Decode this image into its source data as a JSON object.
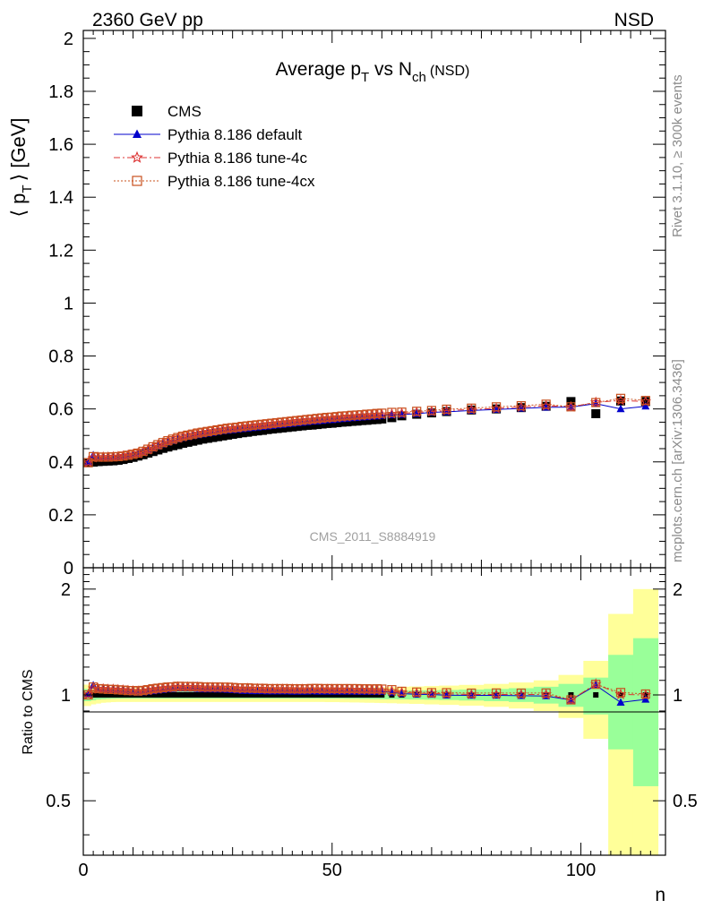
{
  "header": {
    "left": "2360 GeV pp",
    "right": "NSD"
  },
  "side": {
    "rivet": "Rivet 3.1.10, ≥ 300k events",
    "mcplots": "mcplots.cern.ch [arXiv:1306.3436]"
  },
  "chart_data": [
    {
      "panel": "main",
      "type": "scatter",
      "title": "Average p_T vs N_ch (NSD)",
      "title_parts": {
        "a": "Average p",
        "a_sub": "T",
        "b": " vs N",
        "b_sub": "ch",
        "c": "(NSD)"
      },
      "ylabel": "⟨ p_T ⟩ [GeV]",
      "ylabel_parts": {
        "lang": "⟨ p",
        "sub": "T",
        "rang": "⟩ [GeV]"
      },
      "xlim": [
        0,
        117
      ],
      "ylim": [
        0,
        2.03
      ],
      "ytick_labels": [
        "0",
        "0.2",
        "0.4",
        "0.6",
        "0.8",
        "1",
        "1.2",
        "1.4",
        "1.6",
        "1.8",
        "2"
      ],
      "ytick_values": [
        0,
        0.2,
        0.4,
        0.6,
        0.8,
        1,
        1.2,
        1.4,
        1.6,
        1.8,
        2
      ],
      "watermark": "CMS_2011_S8884919",
      "legend_position": "top-left",
      "legend": [
        {
          "name": "CMS",
          "marker": "square",
          "color": "#000000"
        },
        {
          "name": "Pythia 8.186 default",
          "marker": "triangle",
          "color": "#0000cc"
        },
        {
          "name": "Pythia 8.186 tune-4c",
          "marker": "star",
          "color": "#dd3333"
        },
        {
          "name": "Pythia 8.186 tune-4cx",
          "marker": "open-square",
          "color": "#c8501e"
        }
      ],
      "x": [
        1,
        2,
        3,
        4,
        5,
        6,
        7,
        8,
        9,
        10,
        11,
        12,
        13,
        14,
        15,
        16,
        17,
        18,
        19,
        20,
        21,
        22,
        23,
        24,
        25,
        26,
        27,
        28,
        29,
        30,
        31,
        32,
        33,
        34,
        35,
        36,
        37,
        38,
        39,
        40,
        41,
        42,
        43,
        44,
        45,
        46,
        47,
        48,
        49,
        50,
        51,
        52,
        53,
        54,
        55,
        56,
        57,
        58,
        59,
        60,
        62,
        64,
        67,
        70,
        73,
        78,
        83,
        88,
        93,
        98,
        103,
        108,
        113
      ],
      "series": [
        {
          "name": "CMS",
          "values": [
            0.397,
            0.399,
            0.401,
            0.402,
            0.403,
            0.404,
            0.406,
            0.409,
            0.413,
            0.417,
            0.422,
            0.427,
            0.433,
            0.439,
            0.445,
            0.451,
            0.456,
            0.461,
            0.465,
            0.47,
            0.474,
            0.478,
            0.482,
            0.486,
            0.489,
            0.492,
            0.495,
            0.498,
            0.501,
            0.504,
            0.507,
            0.51,
            0.512,
            0.515,
            0.517,
            0.519,
            0.522,
            0.524,
            0.526,
            0.528,
            0.53,
            0.532,
            0.534,
            0.536,
            0.538,
            0.539,
            0.541,
            0.543,
            0.545,
            0.546,
            0.548,
            0.55,
            0.551,
            0.553,
            0.554,
            0.556,
            0.557,
            0.559,
            0.56,
            0.562,
            0.567,
            0.574,
            0.58,
            0.585,
            0.59,
            0.596,
            0.6,
            0.605,
            0.61,
            0.628,
            0.582,
            0.63,
            0.628
          ]
        },
        {
          "name": "Pythia 8.186 default",
          "values": [
            0.4,
            0.425,
            0.418,
            0.418,
            0.417,
            0.418,
            0.419,
            0.42,
            0.422,
            0.425,
            0.429,
            0.435,
            0.443,
            0.451,
            0.459,
            0.467,
            0.474,
            0.48,
            0.486,
            0.491,
            0.495,
            0.499,
            0.502,
            0.505,
            0.508,
            0.511,
            0.514,
            0.517,
            0.519,
            0.521,
            0.523,
            0.525,
            0.527,
            0.529,
            0.531,
            0.533,
            0.535,
            0.537,
            0.539,
            0.541,
            0.543,
            0.545,
            0.547,
            0.549,
            0.551,
            0.553,
            0.554,
            0.556,
            0.558,
            0.559,
            0.561,
            0.563,
            0.564,
            0.566,
            0.567,
            0.569,
            0.57,
            0.572,
            0.573,
            0.575,
            0.577,
            0.579,
            0.582,
            0.587,
            0.589,
            0.594,
            0.598,
            0.602,
            0.606,
            0.607,
            0.62,
            0.6,
            0.61
          ]
        },
        {
          "name": "Pythia 8.186 tune-4c",
          "values": [
            0.398,
            0.416,
            0.417,
            0.418,
            0.418,
            0.419,
            0.42,
            0.422,
            0.425,
            0.428,
            0.432,
            0.438,
            0.446,
            0.455,
            0.463,
            0.471,
            0.478,
            0.484,
            0.49,
            0.495,
            0.499,
            0.503,
            0.507,
            0.51,
            0.513,
            0.516,
            0.519,
            0.522,
            0.525,
            0.527,
            0.529,
            0.531,
            0.534,
            0.536,
            0.538,
            0.54,
            0.542,
            0.544,
            0.546,
            0.548,
            0.55,
            0.552,
            0.554,
            0.556,
            0.558,
            0.559,
            0.561,
            0.563,
            0.565,
            0.566,
            0.568,
            0.569,
            0.571,
            0.572,
            0.573,
            0.575,
            0.576,
            0.577,
            0.578,
            0.579,
            0.581,
            0.583,
            0.587,
            0.59,
            0.594,
            0.598,
            0.602,
            0.607,
            0.612,
            0.608,
            0.625,
            0.632,
            0.628
          ]
        },
        {
          "name": "Pythia 8.186 tune-4cx",
          "values": [
            0.397,
            0.42,
            0.418,
            0.418,
            0.418,
            0.419,
            0.42,
            0.422,
            0.425,
            0.429,
            0.433,
            0.44,
            0.448,
            0.457,
            0.465,
            0.473,
            0.48,
            0.486,
            0.492,
            0.497,
            0.501,
            0.505,
            0.509,
            0.512,
            0.515,
            0.518,
            0.521,
            0.524,
            0.527,
            0.529,
            0.531,
            0.534,
            0.536,
            0.538,
            0.54,
            0.542,
            0.544,
            0.546,
            0.548,
            0.55,
            0.552,
            0.554,
            0.556,
            0.558,
            0.56,
            0.562,
            0.564,
            0.566,
            0.568,
            0.569,
            0.571,
            0.573,
            0.574,
            0.576,
            0.577,
            0.578,
            0.58,
            0.581,
            0.583,
            0.584,
            0.587,
            0.588,
            0.591,
            0.594,
            0.599,
            0.603,
            0.608,
            0.612,
            0.618,
            0.608,
            0.624,
            0.64,
            0.632
          ]
        }
      ]
    },
    {
      "panel": "ratio",
      "type": "line",
      "ylabel": "Ratio to CMS",
      "xlabel": "n",
      "xlim": [
        0,
        117
      ],
      "ylim": [
        0.35,
        2.3
      ],
      "yscale": "log",
      "ytick_labels": [
        "0.5",
        "1",
        "2"
      ],
      "ytick_values": [
        0.5,
        1,
        2
      ],
      "xtick_labels": [
        "0",
        "50",
        "100"
      ],
      "xtick_values": [
        0,
        50,
        100
      ],
      "band_colors": {
        "inner": "#99ff99",
        "outer": "#ffff99"
      },
      "bands": {
        "x": [
          1,
          2,
          3,
          4,
          5,
          6,
          7,
          8,
          9,
          10,
          11,
          12,
          13,
          14,
          15,
          16,
          17,
          18,
          19,
          20,
          21,
          22,
          23,
          24,
          25,
          26,
          27,
          28,
          29,
          30,
          31,
          32,
          33,
          34,
          35,
          36,
          37,
          38,
          39,
          40,
          41,
          42,
          43,
          44,
          45,
          46,
          47,
          48,
          49,
          50,
          51,
          52,
          53,
          54,
          55,
          56,
          57,
          58,
          59,
          60,
          62,
          64,
          67,
          70,
          73,
          78,
          83,
          88,
          93,
          98,
          103,
          108,
          113
        ],
        "inner_halfwidth": [
          0.04,
          0.035,
          0.03,
          0.028,
          0.026,
          0.025,
          0.024,
          0.024,
          0.024,
          0.024,
          0.024,
          0.024,
          0.024,
          0.024,
          0.024,
          0.024,
          0.024,
          0.024,
          0.024,
          0.024,
          0.024,
          0.024,
          0.024,
          0.024,
          0.024,
          0.024,
          0.024,
          0.024,
          0.024,
          0.024,
          0.024,
          0.024,
          0.024,
          0.024,
          0.024,
          0.024,
          0.024,
          0.024,
          0.024,
          0.024,
          0.024,
          0.024,
          0.024,
          0.024,
          0.024,
          0.024,
          0.024,
          0.024,
          0.024,
          0.024,
          0.024,
          0.024,
          0.025,
          0.025,
          0.025,
          0.026,
          0.026,
          0.027,
          0.027,
          0.028,
          0.028,
          0.029,
          0.03,
          0.031,
          0.033,
          0.036,
          0.04,
          0.045,
          0.055,
          0.075,
          0.12,
          0.3,
          0.45
        ],
        "outer_halfwidth": [
          0.07,
          0.06,
          0.055,
          0.05,
          0.048,
          0.046,
          0.045,
          0.045,
          0.045,
          0.045,
          0.045,
          0.045,
          0.045,
          0.045,
          0.045,
          0.045,
          0.045,
          0.045,
          0.045,
          0.045,
          0.045,
          0.045,
          0.045,
          0.045,
          0.045,
          0.045,
          0.045,
          0.045,
          0.045,
          0.045,
          0.045,
          0.045,
          0.045,
          0.045,
          0.045,
          0.045,
          0.045,
          0.045,
          0.045,
          0.045,
          0.045,
          0.045,
          0.045,
          0.045,
          0.045,
          0.045,
          0.045,
          0.045,
          0.046,
          0.046,
          0.046,
          0.047,
          0.047,
          0.048,
          0.048,
          0.049,
          0.05,
          0.05,
          0.051,
          0.052,
          0.053,
          0.055,
          0.057,
          0.06,
          0.063,
          0.068,
          0.075,
          0.085,
          0.1,
          0.14,
          0.25,
          0.7,
          1.0
        ]
      },
      "series": [
        {
          "name": "Pythia 8.186 default",
          "values": [
            1.008,
            1.065,
            1.042,
            1.04,
            1.035,
            1.035,
            1.032,
            1.027,
            1.022,
            1.019,
            1.017,
            1.019,
            1.023,
            1.027,
            1.031,
            1.035,
            1.039,
            1.041,
            1.045,
            1.045,
            1.044,
            1.044,
            1.041,
            1.039,
            1.039,
            1.039,
            1.038,
            1.038,
            1.036,
            1.034,
            1.032,
            1.029,
            1.029,
            1.027,
            1.027,
            1.027,
            1.025,
            1.025,
            1.025,
            1.025,
            1.025,
            1.024,
            1.024,
            1.024,
            1.024,
            1.026,
            1.024,
            1.024,
            1.024,
            1.024,
            1.024,
            1.024,
            1.024,
            1.024,
            1.023,
            1.023,
            1.023,
            1.023,
            1.023,
            1.023,
            1.018,
            1.009,
            1.004,
            1.003,
            0.998,
            0.997,
            0.997,
            0.995,
            0.993,
            0.967,
            1.065,
            0.952,
            0.971
          ]
        },
        {
          "name": "Pythia 8.186 tune-4c",
          "values": [
            1.003,
            1.043,
            1.04,
            1.04,
            1.037,
            1.037,
            1.034,
            1.032,
            1.029,
            1.026,
            1.024,
            1.026,
            1.03,
            1.036,
            1.04,
            1.044,
            1.048,
            1.05,
            1.054,
            1.053,
            1.053,
            1.052,
            1.052,
            1.049,
            1.049,
            1.049,
            1.048,
            1.048,
            1.048,
            1.046,
            1.043,
            1.041,
            1.043,
            1.041,
            1.041,
            1.04,
            1.038,
            1.038,
            1.038,
            1.038,
            1.038,
            1.038,
            1.037,
            1.037,
            1.037,
            1.037,
            1.037,
            1.037,
            1.037,
            1.037,
            1.036,
            1.035,
            1.036,
            1.034,
            1.034,
            1.034,
            1.034,
            1.032,
            1.032,
            1.03,
            1.025,
            1.016,
            1.012,
            1.009,
            1.007,
            1.003,
            1.003,
            1.003,
            1.003,
            0.968,
            1.074,
            1.003,
            1.0
          ]
        },
        {
          "name": "Pythia 8.186 tune-4cx",
          "values": [
            1.0,
            1.053,
            1.042,
            1.04,
            1.037,
            1.037,
            1.034,
            1.032,
            1.029,
            1.029,
            1.026,
            1.03,
            1.035,
            1.041,
            1.045,
            1.049,
            1.053,
            1.054,
            1.058,
            1.057,
            1.057,
            1.056,
            1.056,
            1.053,
            1.053,
            1.053,
            1.053,
            1.052,
            1.052,
            1.05,
            1.047,
            1.047,
            1.047,
            1.045,
            1.044,
            1.044,
            1.042,
            1.042,
            1.042,
            1.042,
            1.042,
            1.041,
            1.041,
            1.041,
            1.041,
            1.043,
            1.043,
            1.042,
            1.042,
            1.042,
            1.042,
            1.042,
            1.042,
            1.042,
            1.042,
            1.04,
            1.041,
            1.039,
            1.041,
            1.039,
            1.035,
            1.024,
            1.019,
            1.015,
            1.015,
            1.012,
            1.013,
            1.012,
            1.013,
            0.968,
            1.072,
            1.016,
            1.006
          ]
        }
      ]
    }
  ]
}
